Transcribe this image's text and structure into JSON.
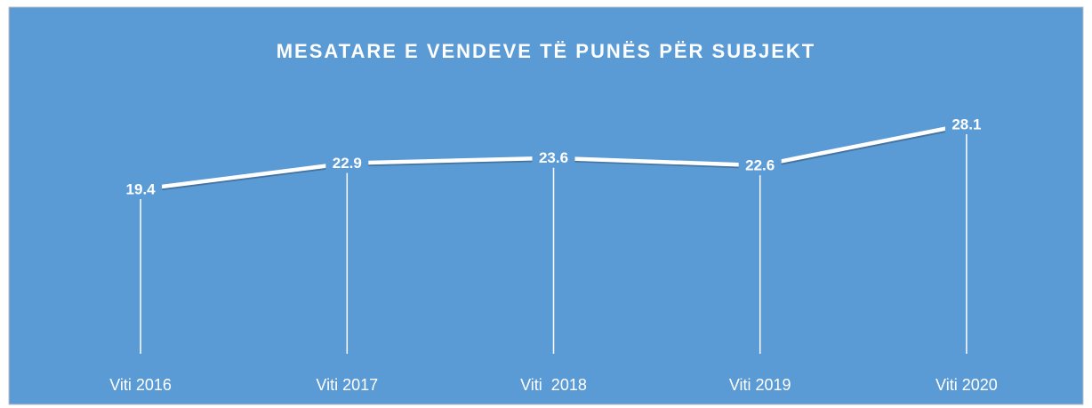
{
  "chart_data": {
    "type": "line",
    "title": "MESATARE E VENDEVE TË PUNËS PËR SUBJEKT",
    "categories": [
      "Viti 2016",
      "Viti 2017",
      "Viti  2018",
      "Viti 2019",
      "Viti 2020"
    ],
    "series": [
      {
        "color": "#ffffff",
        "values": [
          19.4,
          22.9,
          23.6,
          22.6,
          28.1
        ]
      }
    ],
    "background": "#5b9bd5",
    "drop_lines": true,
    "data_labels": true
  }
}
